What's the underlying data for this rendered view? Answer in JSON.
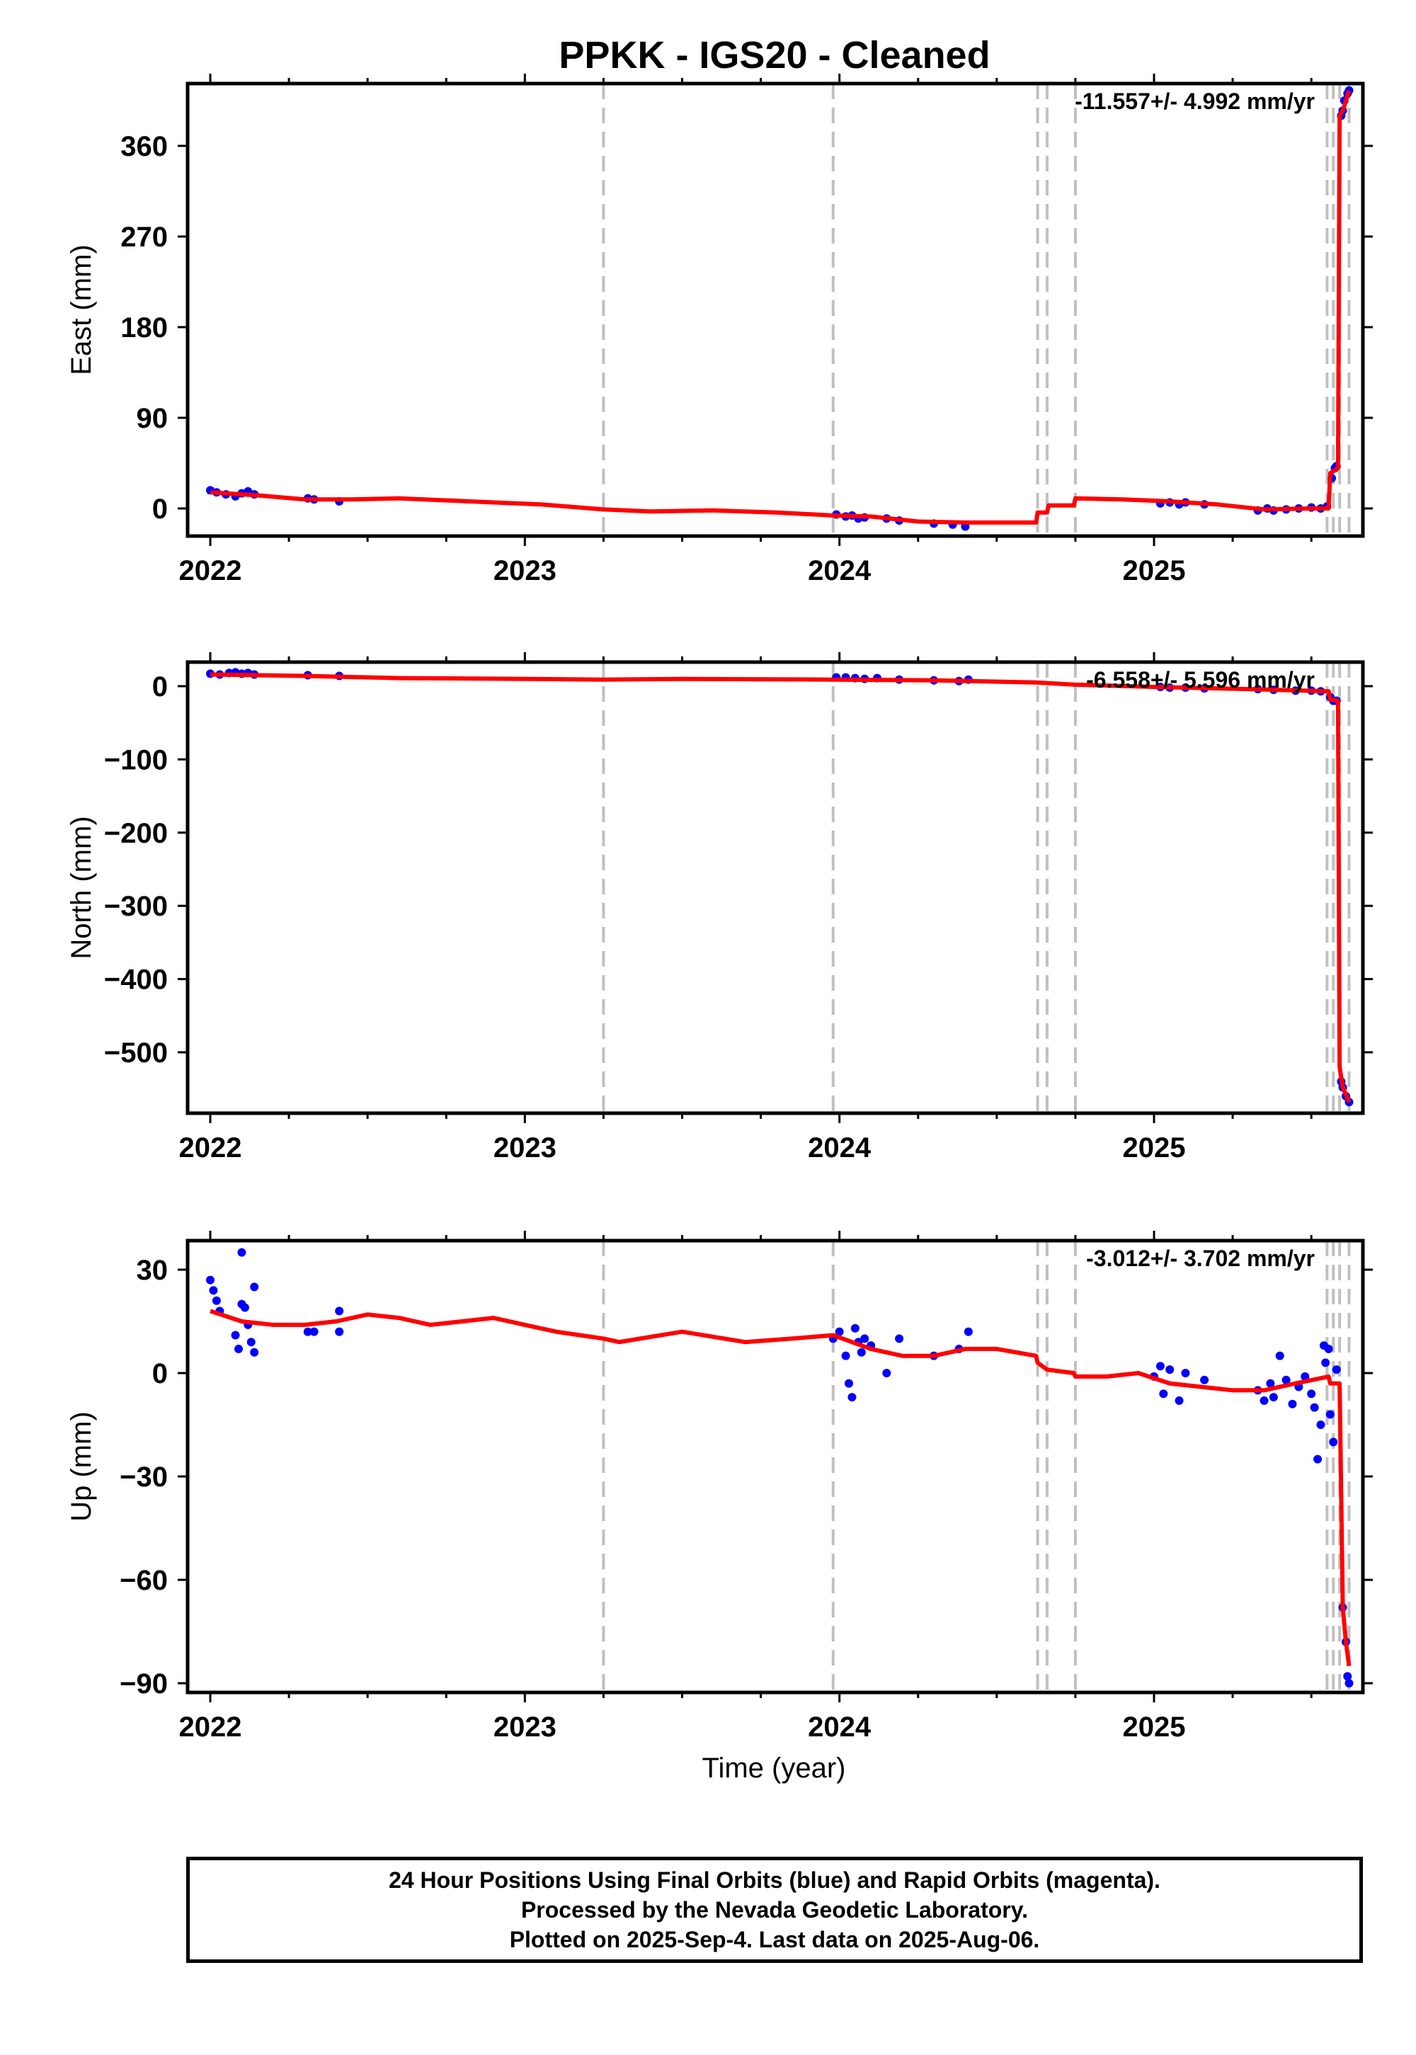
{
  "title": "PPKK  - IGS20 - Cleaned",
  "xlabel": "Time (year)",
  "footer": {
    "line1": "24 Hour Positions Using Final Orbits (blue) and Rapid Orbits (magenta).",
    "line2": "Processed by the Nevada Geodetic Laboratory.",
    "line3": "Plotted on 2025-Sep-4. Last data on 2025-Aug-06."
  },
  "colors": {
    "data": "#0000ff",
    "model": "#ff0000",
    "events": "#c0c0c0",
    "axes": "#000000"
  },
  "chart_data": [
    {
      "type": "scatter",
      "panel": "east",
      "ylabel": "East (mm)",
      "rate_label": "-11.557+/- 4.992 mm/yr",
      "xlim": [
        1921.94,
        2025.67
      ],
      "ylim": [
        -27,
        420
      ],
      "xticks": [
        2022,
        2023,
        2024,
        2025
      ],
      "yticks": [
        0,
        90,
        180,
        270,
        360
      ],
      "events": [
        2023.25,
        2023.98,
        2024.63,
        2024.66,
        2024.75,
        2025.55,
        2025.57,
        2025.59,
        2025.62
      ],
      "points": [
        [
          2022.0,
          18
        ],
        [
          2022.02,
          16
        ],
        [
          2022.05,
          14
        ],
        [
          2022.08,
          12
        ],
        [
          2022.1,
          15
        ],
        [
          2022.12,
          17
        ],
        [
          2022.14,
          14
        ],
        [
          2022.31,
          10
        ],
        [
          2022.33,
          9
        ],
        [
          2022.41,
          7
        ],
        [
          2023.99,
          -6
        ],
        [
          2024.02,
          -8
        ],
        [
          2024.04,
          -7
        ],
        [
          2024.06,
          -10
        ],
        [
          2024.08,
          -9
        ],
        [
          2024.15,
          -10
        ],
        [
          2024.19,
          -12
        ],
        [
          2024.3,
          -15
        ],
        [
          2024.36,
          -16
        ],
        [
          2024.4,
          -18
        ],
        [
          2025.02,
          5
        ],
        [
          2025.05,
          6
        ],
        [
          2025.08,
          4
        ],
        [
          2025.1,
          6
        ],
        [
          2025.16,
          4
        ],
        [
          2025.33,
          -2
        ],
        [
          2025.36,
          0
        ],
        [
          2025.38,
          -2
        ],
        [
          2025.42,
          -1
        ],
        [
          2025.46,
          0
        ],
        [
          2025.5,
          1
        ],
        [
          2025.53,
          0
        ],
        [
          2025.55,
          2
        ],
        [
          2025.565,
          30
        ],
        [
          2025.575,
          40
        ],
        [
          2025.58,
          42
        ],
        [
          2025.595,
          390
        ],
        [
          2025.6,
          395
        ],
        [
          2025.605,
          405
        ],
        [
          2025.615,
          412
        ],
        [
          2025.62,
          415
        ]
      ],
      "model": [
        [
          2022.0,
          16
        ],
        [
          2022.15,
          13
        ],
        [
          2022.3,
          9
        ],
        [
          2022.45,
          9
        ],
        [
          2022.6,
          10
        ],
        [
          2022.75,
          8
        ],
        [
          2022.9,
          6
        ],
        [
          2023.05,
          4
        ],
        [
          2023.25,
          -1
        ],
        [
          2023.4,
          -3
        ],
        [
          2023.6,
          -2
        ],
        [
          2023.8,
          -4
        ],
        [
          2023.98,
          -7
        ],
        [
          2024.1,
          -8
        ],
        [
          2024.25,
          -13
        ],
        [
          2024.4,
          -14
        ],
        [
          2024.55,
          -14
        ],
        [
          2024.625,
          -14
        ],
        [
          2024.63,
          -4
        ],
        [
          2024.66,
          -4
        ],
        [
          2024.665,
          3
        ],
        [
          2024.745,
          3
        ],
        [
          2024.75,
          10
        ],
        [
          2024.9,
          9
        ],
        [
          2025.05,
          7
        ],
        [
          2025.2,
          4
        ],
        [
          2025.35,
          -1
        ],
        [
          2025.5,
          0
        ],
        [
          2025.555,
          0
        ],
        [
          2025.56,
          35
        ],
        [
          2025.585,
          40
        ],
        [
          2025.59,
          390
        ],
        [
          2025.6,
          395
        ],
        [
          2025.62,
          415
        ]
      ]
    },
    {
      "type": "scatter",
      "panel": "north",
      "ylabel": "North (mm)",
      "rate_label": "-6.558+/- 5.596 mm/yr",
      "xlim": [
        1921.94,
        2025.67
      ],
      "ylim": [
        -585,
        33
      ],
      "xticks": [
        2022,
        2023,
        2024,
        2025
      ],
      "yticks": [
        0,
        -100,
        -200,
        -300,
        -400,
        -500
      ],
      "events": [
        2023.25,
        2023.98,
        2024.63,
        2024.66,
        2024.75,
        2025.55,
        2025.57,
        2025.59,
        2025.62
      ],
      "points": [
        [
          2022.0,
          17
        ],
        [
          2022.03,
          16
        ],
        [
          2022.06,
          18
        ],
        [
          2022.08,
          19
        ],
        [
          2022.1,
          17
        ],
        [
          2022.12,
          18
        ],
        [
          2022.14,
          16
        ],
        [
          2022.31,
          15
        ],
        [
          2022.41,
          14
        ],
        [
          2023.99,
          12
        ],
        [
          2024.02,
          12
        ],
        [
          2024.05,
          11
        ],
        [
          2024.08,
          10
        ],
        [
          2024.12,
          11
        ],
        [
          2024.19,
          9
        ],
        [
          2024.3,
          8
        ],
        [
          2024.38,
          7
        ],
        [
          2024.41,
          9
        ],
        [
          2025.02,
          -1
        ],
        [
          2025.05,
          -2
        ],
        [
          2025.1,
          -2
        ],
        [
          2025.16,
          -3
        ],
        [
          2025.33,
          -4
        ],
        [
          2025.38,
          -5
        ],
        [
          2025.45,
          -6
        ],
        [
          2025.5,
          -6
        ],
        [
          2025.53,
          -7
        ],
        [
          2025.56,
          -15
        ],
        [
          2025.57,
          -20
        ],
        [
          2025.58,
          -20
        ],
        [
          2025.595,
          -540
        ],
        [
          2025.6,
          -548
        ],
        [
          2025.61,
          -560
        ],
        [
          2025.62,
          -568
        ]
      ],
      "model": [
        [
          2022.0,
          16
        ],
        [
          2022.3,
          14
        ],
        [
          2022.6,
          11
        ],
        [
          2023.0,
          10
        ],
        [
          2023.25,
          9
        ],
        [
          2023.5,
          10
        ],
        [
          2023.98,
          9
        ],
        [
          2024.3,
          8
        ],
        [
          2024.625,
          5
        ],
        [
          2024.75,
          2
        ],
        [
          2025.0,
          -1
        ],
        [
          2025.3,
          -4
        ],
        [
          2025.555,
          -7
        ],
        [
          2025.56,
          -18
        ],
        [
          2025.585,
          -20
        ],
        [
          2025.59,
          -520
        ],
        [
          2025.6,
          -548
        ],
        [
          2025.62,
          -568
        ]
      ]
    },
    {
      "type": "scatter",
      "panel": "up",
      "ylabel": "Up (mm)",
      "rate_label": "-3.012+/- 3.702 mm/yr",
      "xlim": [
        1921.94,
        2025.67
      ],
      "ylim": [
        -93,
        38
      ],
      "xticks": [
        2022,
        2023,
        2024,
        2025
      ],
      "yticks": [
        30,
        0,
        -30,
        -60,
        -90
      ],
      "events": [
        2023.25,
        2023.98,
        2024.63,
        2024.66,
        2024.75,
        2025.55,
        2025.57,
        2025.59,
        2025.62
      ],
      "points": [
        [
          2022.0,
          27
        ],
        [
          2022.01,
          24
        ],
        [
          2022.02,
          21
        ],
        [
          2022.03,
          18
        ],
        [
          2022.08,
          11
        ],
        [
          2022.09,
          7
        ],
        [
          2022.1,
          20
        ],
        [
          2022.11,
          19
        ],
        [
          2022.1,
          35
        ],
        [
          2022.12,
          14
        ],
        [
          2022.13,
          9
        ],
        [
          2022.14,
          6
        ],
        [
          2022.14,
          25
        ],
        [
          2022.31,
          12
        ],
        [
          2022.33,
          12
        ],
        [
          2022.41,
          18
        ],
        [
          2022.41,
          12
        ],
        [
          2023.98,
          10
        ],
        [
          2024.0,
          12
        ],
        [
          2024.02,
          5
        ],
        [
          2024.03,
          -3
        ],
        [
          2024.04,
          -7
        ],
        [
          2024.05,
          13
        ],
        [
          2024.06,
          9
        ],
        [
          2024.07,
          6
        ],
        [
          2024.08,
          10
        ],
        [
          2024.1,
          8
        ],
        [
          2024.15,
          0
        ],
        [
          2024.19,
          10
        ],
        [
          2024.3,
          5
        ],
        [
          2024.38,
          7
        ],
        [
          2024.41,
          12
        ],
        [
          2025.0,
          -1
        ],
        [
          2025.02,
          2
        ],
        [
          2025.03,
          -6
        ],
        [
          2025.05,
          1
        ],
        [
          2025.08,
          -8
        ],
        [
          2025.1,
          0
        ],
        [
          2025.16,
          -2
        ],
        [
          2025.33,
          -5
        ],
        [
          2025.35,
          -8
        ],
        [
          2025.37,
          -3
        ],
        [
          2025.38,
          -7
        ],
        [
          2025.4,
          5
        ],
        [
          2025.42,
          -2
        ],
        [
          2025.44,
          -9
        ],
        [
          2025.46,
          -4
        ],
        [
          2025.48,
          -1
        ],
        [
          2025.5,
          -6
        ],
        [
          2025.51,
          -10
        ],
        [
          2025.52,
          -25
        ],
        [
          2025.53,
          -15
        ],
        [
          2025.54,
          8
        ],
        [
          2025.545,
          3
        ],
        [
          2025.555,
          7
        ],
        [
          2025.56,
          -12
        ],
        [
          2025.57,
          -20
        ],
        [
          2025.58,
          1
        ],
        [
          2025.6,
          -68
        ],
        [
          2025.61,
          -78
        ],
        [
          2025.615,
          -88
        ],
        [
          2025.62,
          -90
        ]
      ],
      "model": [
        [
          2022.0,
          18
        ],
        [
          2022.1,
          15
        ],
        [
          2022.2,
          14
        ],
        [
          2022.3,
          14
        ],
        [
          2022.4,
          15
        ],
        [
          2022.5,
          17
        ],
        [
          2022.6,
          16
        ],
        [
          2022.7,
          14
        ],
        [
          2022.8,
          15
        ],
        [
          2022.9,
          16
        ],
        [
          2023.0,
          14
        ],
        [
          2023.1,
          12
        ],
        [
          2023.25,
          10
        ],
        [
          2023.3,
          9
        ],
        [
          2023.5,
          12
        ],
        [
          2023.7,
          9
        ],
        [
          2023.85,
          10
        ],
        [
          2023.98,
          11
        ],
        [
          2024.1,
          7
        ],
        [
          2024.2,
          5
        ],
        [
          2024.3,
          5
        ],
        [
          2024.4,
          7
        ],
        [
          2024.5,
          7
        ],
        [
          2024.625,
          5
        ],
        [
          2024.63,
          3
        ],
        [
          2024.66,
          1
        ],
        [
          2024.745,
          0
        ],
        [
          2024.75,
          -1
        ],
        [
          2024.85,
          -1
        ],
        [
          2024.95,
          0
        ],
        [
          2025.05,
          -3
        ],
        [
          2025.15,
          -4
        ],
        [
          2025.25,
          -5
        ],
        [
          2025.35,
          -5
        ],
        [
          2025.45,
          -3
        ],
        [
          2025.555,
          -1
        ],
        [
          2025.56,
          -3
        ],
        [
          2025.59,
          -3
        ],
        [
          2025.6,
          -68
        ],
        [
          2025.61,
          -78
        ],
        [
          2025.62,
          -85
        ]
      ]
    }
  ]
}
